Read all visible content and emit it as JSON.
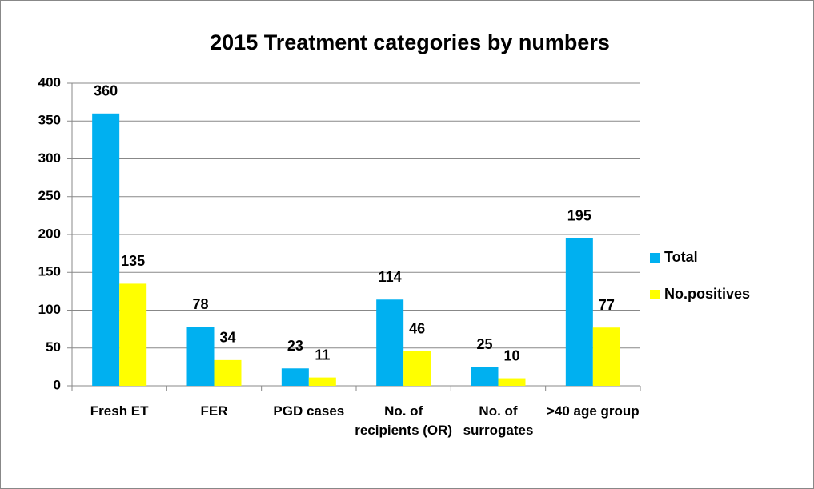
{
  "chart_data": {
    "type": "bar",
    "title": "2015 Treatment categories by  numbers",
    "categories": [
      "Fresh ET",
      "FER",
      "PGD cases",
      "No. of recipients (OR)",
      "No. of surrogates",
      ">40 age group"
    ],
    "series": [
      {
        "name": "Total",
        "color": "#00b0f0",
        "values": [
          360,
          78,
          23,
          114,
          25,
          195
        ]
      },
      {
        "name": "No.positives",
        "color": "#ffff00",
        "values": [
          135,
          34,
          11,
          46,
          10,
          77
        ]
      }
    ],
    "ylim": [
      0,
      400
    ],
    "yticks": [
      0,
      50,
      100,
      150,
      200,
      250,
      300,
      350,
      400
    ],
    "grid": true,
    "legend": "right"
  }
}
